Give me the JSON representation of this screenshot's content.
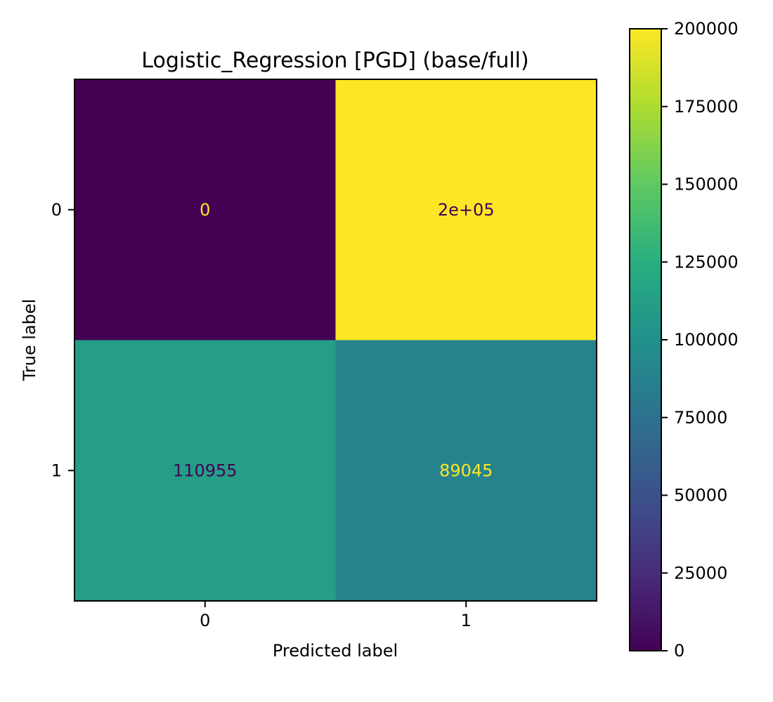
{
  "chart_data": {
    "type": "heatmap",
    "title": "Logistic_Regression [PGD] (base/full)",
    "xlabel": "Predicted label",
    "ylabel": "True label",
    "x_categories": [
      "0",
      "1"
    ],
    "y_categories": [
      "0",
      "1"
    ],
    "values": [
      [
        0,
        200000
      ],
      [
        110955,
        89045
      ]
    ],
    "cell_labels": [
      [
        "0",
        "2e+05"
      ],
      [
        "110955",
        "89045"
      ]
    ],
    "colormap": "viridis",
    "colorbar": {
      "range": [
        0,
        200000
      ],
      "ticks": [
        0,
        25000,
        50000,
        75000,
        100000,
        125000,
        150000,
        175000,
        200000
      ],
      "tick_labels": [
        "0",
        "25000",
        "50000",
        "75000",
        "100000",
        "125000",
        "150000",
        "175000",
        "200000"
      ]
    },
    "text_colors": {
      "on_dark": "#fde725",
      "on_light": "#440154"
    }
  }
}
